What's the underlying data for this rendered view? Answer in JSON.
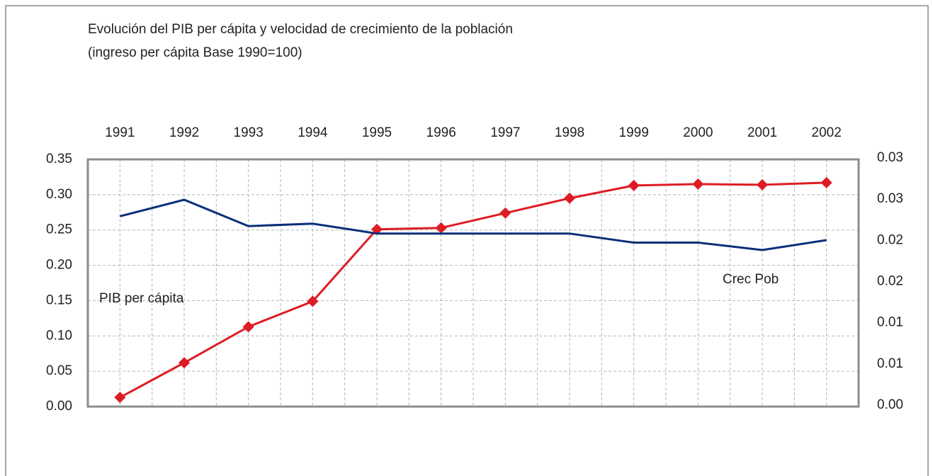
{
  "chart_data": {
    "type": "line",
    "title": "Evolución del PIB per cápita y velocidad de crecimiento de la población",
    "subtitle": "(ingreso per cápita Base 1990=100)",
    "categories": [
      "1991",
      "1992",
      "1993",
      "1994",
      "1995",
      "1996",
      "1997",
      "1998",
      "1999",
      "2000",
      "2001",
      "2002"
    ],
    "series": [
      {
        "name": "PIB per cápita",
        "color": "#dd1c24",
        "marker": "diamond",
        "values": [
          0.013,
          0.062,
          0.113,
          0.149,
          0.251,
          0.253,
          0.274,
          0.295,
          0.313,
          0.315,
          0.314,
          0.317
        ]
      },
      {
        "name": "Crec Pob",
        "color": "#0a2f78",
        "axis": "y2",
        "values": [
          0.0231,
          0.0251,
          0.0219,
          0.0222,
          0.021,
          0.021,
          0.021,
          0.021,
          0.0199,
          0.0199,
          0.019,
          0.0202
        ]
      }
    ],
    "ylim": [
      0,
      0.35
    ],
    "yticks": [
      {
        "value": 0,
        "label": "0.00"
      },
      {
        "value": 0.05,
        "label": "0.05"
      },
      {
        "value": 0.1,
        "label": "0.10"
      },
      {
        "value": 0.15,
        "label": "0.15"
      },
      {
        "value": 0.2,
        "label": "0.20"
      },
      {
        "value": 0.25,
        "label": "0.25"
      },
      {
        "value": 0.3,
        "label": "0.30"
      },
      {
        "value": 0.35,
        "label": "0.35"
      }
    ],
    "y2lim": [
      0,
      0.03
    ],
    "y2ticks": [
      {
        "value": 0,
        "label": "0.00"
      },
      {
        "value": 0.005,
        "label": "0.01"
      },
      {
        "value": 0.01,
        "label": "0.01"
      },
      {
        "value": 0.015,
        "label": "0.02"
      },
      {
        "value": 0.02,
        "label": "0.02"
      },
      {
        "value": 0.025,
        "label": "0.03"
      },
      {
        "value": 0.03,
        "label": "0.03"
      }
    ],
    "grid": true
  }
}
